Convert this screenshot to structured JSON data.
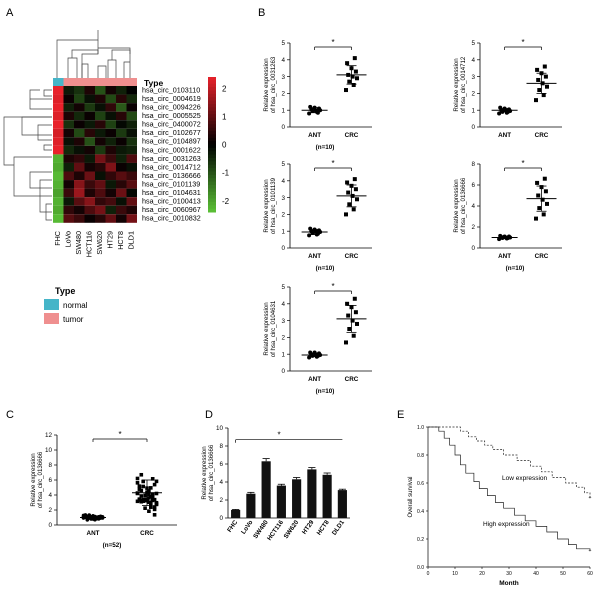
{
  "panels": {
    "A": "A",
    "B": "B",
    "C": "C",
    "D": "D",
    "E": "E"
  },
  "heatmap": {
    "type_label": "Type",
    "samples": [
      "FHC",
      "LoVo",
      "SW480",
      "HCT116",
      "SW620",
      "HT29",
      "HCT8",
      "DLD1"
    ],
    "sample_types": [
      "normal",
      "tumor",
      "tumor",
      "tumor",
      "tumor",
      "tumor",
      "tumor",
      "tumor"
    ],
    "genes": [
      "hsa_circ_0103110",
      "hsa_circ_0004619",
      "hsa_circ_0094226",
      "hsa_circ_0005525",
      "hsa_circ_0400072",
      "hsa_circ_0102677",
      "hsa_circ_0104897",
      "hsa_circ_0001622",
      "hsa_circ_0031263",
      "hsa_circ_0014712",
      "hsa_circ_0136666",
      "hsa_circ_0101139",
      "hsa_circ_0104631",
      "hsa_circ_0100413",
      "hsa_circ_0060967",
      "hsa_circ_0010832"
    ],
    "values": [
      [
        2.4,
        -0.3,
        -0.6,
        0.3,
        -1.0,
        0.2,
        -0.4,
        0.0
      ],
      [
        2.3,
        0.1,
        -0.8,
        -0.2,
        0.3,
        -0.9,
        0.4,
        -0.5
      ],
      [
        2.4,
        -0.4,
        0.2,
        -0.7,
        -0.2,
        0.5,
        -1.1,
        0.1
      ],
      [
        2.3,
        0.3,
        -0.5,
        0.1,
        -0.8,
        -0.2,
        0.4,
        -0.9
      ],
      [
        2.4,
        -0.6,
        0.1,
        -0.3,
        0.4,
        -0.8,
        -0.1,
        -0.4
      ],
      [
        2.2,
        0.2,
        -0.9,
        0.4,
        -0.3,
        0.1,
        -0.7,
        -0.2
      ],
      [
        2.3,
        -0.2,
        0.3,
        -1.0,
        0.2,
        -0.4,
        0.1,
        -0.6
      ],
      [
        2.4,
        -0.5,
        -0.2,
        0.2,
        -0.7,
        0.3,
        -0.3,
        -0.4
      ],
      [
        -2.2,
        0.3,
        0.5,
        -0.3,
        1.2,
        0.6,
        -0.4,
        0.8
      ],
      [
        -2.1,
        -0.4,
        1.0,
        0.2,
        0.4,
        1.3,
        0.1,
        -0.2
      ],
      [
        -2.3,
        0.8,
        0.3,
        1.1,
        -0.2,
        0.5,
        0.9,
        0.6
      ],
      [
        -2.2,
        0.2,
        1.4,
        0.6,
        1.0,
        -0.3,
        0.4,
        0.9
      ],
      [
        -2.0,
        0.6,
        1.6,
        0.3,
        0.8,
        0.2,
        1.1,
        -0.1
      ],
      [
        -2.2,
        -0.3,
        0.9,
        1.4,
        0.5,
        0.7,
        -0.2,
        1.0
      ],
      [
        -2.1,
        0.5,
        0.2,
        0.8,
        1.2,
        -0.4,
        0.6,
        0.3
      ],
      [
        -2.3,
        0.9,
        0.6,
        0.1,
        0.4,
        1.0,
        0.2,
        1.2
      ]
    ],
    "colorbar_ticks": [
      "2",
      "1",
      "0",
      "-1",
      "-2"
    ],
    "colorbar_values": [
      2,
      1,
      0,
      -1,
      -2
    ],
    "colors": {
      "high": "#e8222b",
      "mid": "#000000",
      "low": "#5bc236"
    },
    "legend_title": "Type",
    "legend": [
      {
        "label": "normal",
        "color": "#45b5c8"
      },
      {
        "label": "tumor",
        "color": "#ef8f8f"
      }
    ]
  },
  "chart_data": [
    {
      "panel": "B",
      "type": "scatter",
      "ylabel": [
        "Relative expression",
        "of hsa_circ_0031263"
      ],
      "categories": [
        "ANT",
        "CRC"
      ],
      "ylim": [
        0,
        5
      ],
      "yticks": [
        0,
        1,
        2,
        3,
        4,
        5
      ],
      "significance": "*",
      "n_label": "(n=10)",
      "series": [
        {
          "name": "ANT",
          "values": [
            0.8,
            0.9,
            0.95,
            1.0,
            1.0,
            1.05,
            1.1,
            1.15,
            1.2,
            0.85
          ],
          "mean": 1.0,
          "sd": 0.15
        },
        {
          "name": "CRC",
          "values": [
            2.2,
            2.5,
            2.7,
            2.9,
            3.0,
            3.1,
            3.3,
            3.5,
            3.8,
            4.1
          ],
          "mean": 3.1,
          "sd": 0.55
        }
      ]
    },
    {
      "panel": "B",
      "type": "scatter",
      "ylabel": [
        "Relative expression",
        "of hsa_circ_0014712"
      ],
      "categories": [
        "ANT",
        "CRC"
      ],
      "ylim": [
        0,
        5
      ],
      "yticks": [
        0,
        1,
        2,
        3,
        4,
        5
      ],
      "significance": "*",
      "n_label": "",
      "series": [
        {
          "name": "ANT",
          "values": [
            0.8,
            0.85,
            0.9,
            0.95,
            1.0,
            1.0,
            1.05,
            1.1,
            1.15,
            0.9
          ],
          "mean": 1.0,
          "sd": 0.1
        },
        {
          "name": "CRC",
          "values": [
            1.6,
            1.9,
            2.2,
            2.4,
            2.6,
            2.8,
            3.0,
            3.2,
            3.4,
            3.6
          ],
          "mean": 2.6,
          "sd": 0.6
        }
      ]
    },
    {
      "panel": "B",
      "type": "scatter",
      "ylabel": [
        "Relative expression",
        "of hsa_circ_0101139"
      ],
      "categories": [
        "ANT",
        "CRC"
      ],
      "ylim": [
        0,
        5
      ],
      "yticks": [
        0,
        1,
        2,
        3,
        4,
        5
      ],
      "significance": "*",
      "n_label": "(n=10)",
      "series": [
        {
          "name": "ANT",
          "values": [
            0.75,
            0.8,
            0.9,
            0.95,
            1.0,
            1.0,
            1.05,
            1.1,
            1.15,
            0.85
          ],
          "mean": 0.95,
          "sd": 0.15
        },
        {
          "name": "CRC",
          "values": [
            2.0,
            2.3,
            2.6,
            2.9,
            3.1,
            3.3,
            3.5,
            3.7,
            3.9,
            4.1
          ],
          "mean": 3.1,
          "sd": 0.65
        }
      ]
    },
    {
      "panel": "B",
      "type": "scatter",
      "ylabel": [
        "Relative expression",
        "of hsa_circ_0136666"
      ],
      "categories": [
        "ANT",
        "CRC"
      ],
      "ylim": [
        0,
        8
      ],
      "yticks": [
        0,
        2,
        4,
        6,
        8
      ],
      "significance": "*",
      "n_label": "(n=10)",
      "series": [
        {
          "name": "ANT",
          "values": [
            0.85,
            0.9,
            0.95,
            1.0,
            1.0,
            1.05,
            1.1,
            1.1,
            1.15,
            0.95
          ],
          "mean": 1.0,
          "sd": 0.1
        },
        {
          "name": "CRC",
          "values": [
            2.8,
            3.2,
            3.8,
            4.2,
            4.6,
            5.0,
            5.4,
            5.8,
            6.2,
            6.6
          ],
          "mean": 4.7,
          "sd": 1.2
        }
      ]
    },
    {
      "panel": "B",
      "type": "scatter",
      "ylabel": [
        "Relative expression",
        "of hsa_circ_0104631"
      ],
      "categories": [
        "ANT",
        "CRC"
      ],
      "ylim": [
        0,
        5
      ],
      "yticks": [
        0,
        1,
        2,
        3,
        4,
        5
      ],
      "significance": "*",
      "n_label": "(n=10)",
      "series": [
        {
          "name": "ANT",
          "values": [
            0.8,
            0.85,
            0.9,
            0.95,
            1.0,
            1.0,
            1.05,
            1.1,
            1.1,
            0.9
          ],
          "mean": 0.95,
          "sd": 0.1
        },
        {
          "name": "CRC",
          "values": [
            1.7,
            2.1,
            2.5,
            2.8,
            3.0,
            3.3,
            3.5,
            3.8,
            4.0,
            4.3
          ],
          "mean": 3.1,
          "sd": 0.8
        }
      ]
    },
    {
      "panel": "C",
      "type": "scatter",
      "ylabel": [
        "Relative expression",
        "of hsa_circ_0136666"
      ],
      "categories": [
        "ANT",
        "CRC"
      ],
      "ylim": [
        0,
        12
      ],
      "yticks": [
        0,
        2,
        4,
        6,
        8,
        10,
        12
      ],
      "significance": "*",
      "n_label": "(n=52)",
      "series": [
        {
          "name": "ANT",
          "mean": 1.0,
          "sd": 0.2,
          "n": 52,
          "range": [
            0.6,
            1.5
          ]
        },
        {
          "name": "CRC",
          "mean": 4.3,
          "sd": 1.7,
          "n": 52,
          "range": [
            1.2,
            7.8
          ]
        }
      ]
    },
    {
      "panel": "D",
      "type": "bar",
      "ylabel": [
        "Relative expression",
        "of hsa_circ_0136666"
      ],
      "categories": [
        "FHC",
        "LoVo",
        "SW480",
        "HCT116",
        "SW620",
        "HT29",
        "HCT8",
        "DLD1"
      ],
      "values": [
        0.9,
        2.7,
        6.3,
        3.6,
        4.3,
        5.4,
        4.8,
        3.1
      ],
      "errors": [
        0.05,
        0.15,
        0.3,
        0.15,
        0.2,
        0.2,
        0.2,
        0.1
      ],
      "ylim": [
        0,
        10
      ],
      "yticks": [
        0,
        2,
        4,
        6,
        8,
        10
      ],
      "significance": "*"
    },
    {
      "panel": "E",
      "type": "line",
      "xlabel": "Month",
      "ylabel": "Overall survival",
      "xlim": [
        0,
        60
      ],
      "ylim": [
        0,
        1.0
      ],
      "xticks": [
        0,
        10,
        20,
        30,
        40,
        50,
        60
      ],
      "yticks": [
        "0.0",
        "0.2",
        "0.4",
        "0.6",
        "0.8",
        "1.0"
      ],
      "series": [
        {
          "name": "Low expression",
          "style": "dashed",
          "points": [
            [
              0,
              1.0
            ],
            [
              10,
              1.0
            ],
            [
              12,
              0.97
            ],
            [
              15,
              0.93
            ],
            [
              18,
              0.9
            ],
            [
              21,
              0.87
            ],
            [
              24,
              0.84
            ],
            [
              28,
              0.8
            ],
            [
              33,
              0.76
            ],
            [
              38,
              0.72
            ],
            [
              42,
              0.68
            ],
            [
              46,
              0.64
            ],
            [
              51,
              0.6
            ],
            [
              55,
              0.57
            ],
            [
              58,
              0.53
            ],
            [
              60,
              0.5
            ]
          ]
        },
        {
          "name": "High expression",
          "style": "solid",
          "points": [
            [
              0,
              1.0
            ],
            [
              4,
              0.97
            ],
            [
              6,
              0.92
            ],
            [
              8,
              0.87
            ],
            [
              10,
              0.8
            ],
            [
              12,
              0.73
            ],
            [
              14,
              0.67
            ],
            [
              17,
              0.61
            ],
            [
              19,
              0.56
            ],
            [
              22,
              0.51
            ],
            [
              25,
              0.46
            ],
            [
              28,
              0.42
            ],
            [
              32,
              0.37
            ],
            [
              36,
              0.33
            ],
            [
              40,
              0.29
            ],
            [
              44,
              0.25
            ],
            [
              48,
              0.2
            ],
            [
              52,
              0.16
            ],
            [
              55,
              0.13
            ],
            [
              60,
              0.12
            ]
          ]
        }
      ]
    }
  ]
}
